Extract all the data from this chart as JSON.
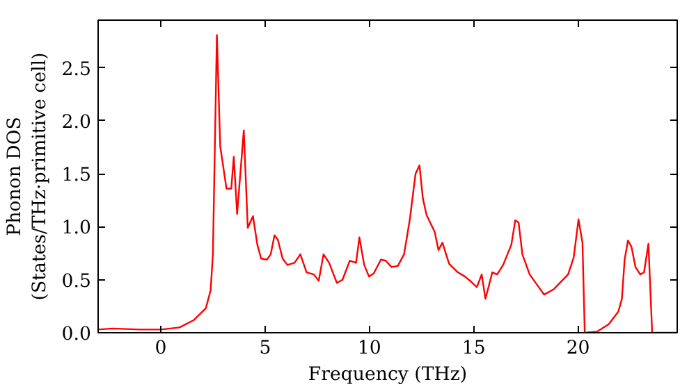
{
  "chart_data": {
    "type": "line",
    "xlabel": "Frequency (THz)",
    "ylabel": "Phonon DOS\n(States/THz·primitive cell)",
    "xlim": [
      -3,
      24.75
    ],
    "ylim": [
      0,
      2.95
    ],
    "xticks": [
      0,
      5,
      10,
      15,
      20
    ],
    "yticks": [
      {
        "value": 0,
        "label": "0.0"
      },
      {
        "value": 0.5,
        "label": "0.5"
      },
      {
        "value": 1,
        "label": "1.0"
      },
      {
        "value": 1.5,
        "label": "1.5"
      },
      {
        "value": 2,
        "label": "2.0"
      },
      {
        "value": 2.5,
        "label": "2.5"
      }
    ],
    "grid": false,
    "line_style": "solid",
    "series": [
      {
        "color": "#ff0000",
        "x": [
          -3,
          -2.3,
          -1,
          0,
          0.9,
          1.59,
          2.16,
          2.39,
          2.5,
          2.69,
          2.85,
          3.15,
          3.38,
          3.5,
          3.66,
          3.98,
          4.17,
          4.42,
          4.63,
          4.81,
          5.09,
          5.27,
          5.45,
          5.61,
          5.84,
          6.07,
          6.41,
          6.69,
          6.99,
          7.34,
          7.57,
          7.8,
          8.07,
          8.44,
          8.71,
          9.06,
          9.36,
          9.52,
          9.75,
          9.98,
          10.21,
          10.55,
          10.78,
          11.06,
          11.36,
          11.66,
          11.93,
          12.21,
          12.4,
          12.56,
          12.74,
          13.13,
          13.31,
          13.5,
          13.82,
          14.24,
          14.58,
          14.88,
          15.15,
          15.38,
          15.56,
          15.89,
          16.12,
          16.41,
          16.8,
          16.99,
          17.15,
          17.33,
          17.68,
          18.37,
          18.83,
          19.52,
          19.79,
          20.02,
          20.21,
          20.32,
          20.9,
          21.47,
          21.93,
          22.1,
          22.23,
          22.39,
          22.56,
          22.75,
          22.98,
          23.16,
          23.37,
          23.55,
          24.75
        ],
        "values": [
          0.03,
          0.04,
          0.03,
          0.03,
          0.05,
          0.12,
          0.23,
          0.4,
          0.74,
          2.81,
          1.76,
          1.36,
          1.36,
          1.66,
          1.12,
          1.91,
          0.99,
          1.1,
          0.83,
          0.7,
          0.69,
          0.74,
          0.92,
          0.88,
          0.7,
          0.64,
          0.66,
          0.74,
          0.57,
          0.55,
          0.49,
          0.74,
          0.66,
          0.47,
          0.5,
          0.68,
          0.66,
          0.9,
          0.64,
          0.53,
          0.56,
          0.69,
          0.68,
          0.62,
          0.63,
          0.74,
          1.06,
          1.5,
          1.58,
          1.27,
          1.11,
          0.95,
          0.78,
          0.85,
          0.65,
          0.57,
          0.53,
          0.48,
          0.43,
          0.55,
          0.32,
          0.57,
          0.55,
          0.64,
          0.83,
          1.06,
          1.04,
          0.74,
          0.55,
          0.36,
          0.41,
          0.55,
          0.71,
          1.07,
          0.85,
          0,
          0.01,
          0.08,
          0.2,
          0.32,
          0.69,
          0.87,
          0.81,
          0.62,
          0.55,
          0.57,
          0.84,
          0,
          0
        ]
      }
    ]
  }
}
